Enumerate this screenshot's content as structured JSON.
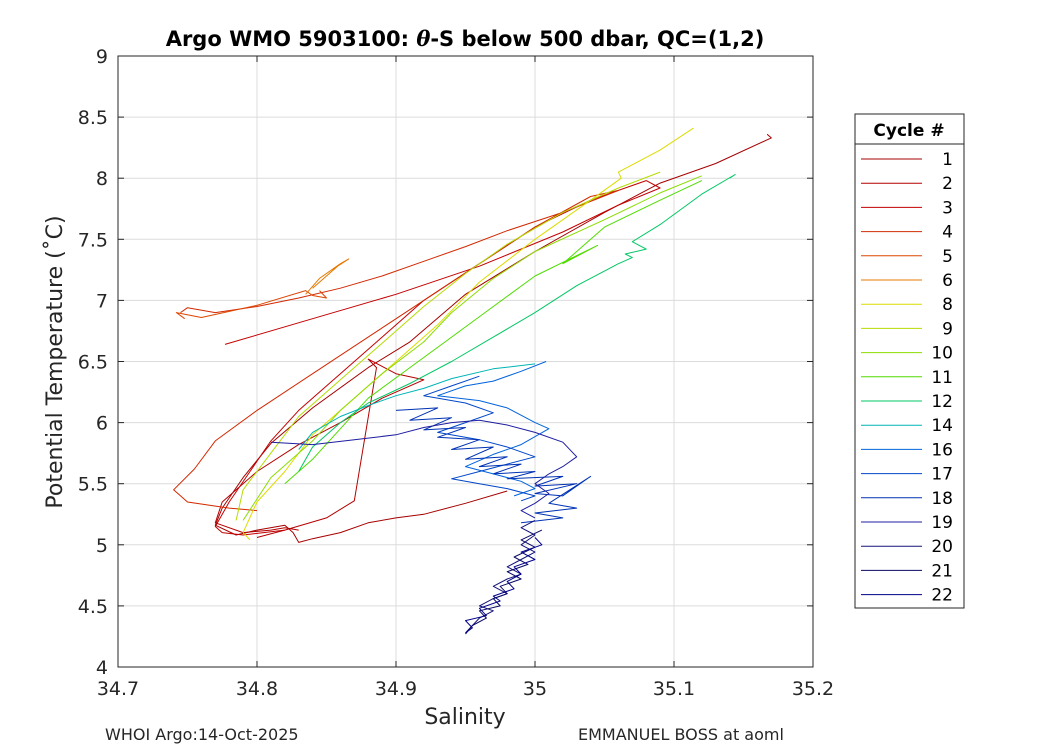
{
  "chart_data": {
    "type": "line",
    "title": "Argo WMO 5903100: θ-S below 500 dbar,  QC=(1,2)",
    "title_parts": [
      "Argo WMO 5903100: ",
      "θ",
      "-S below 500 dbar,  QC=(1,2)"
    ],
    "xlabel": "Salinity",
    "ylabel": "Potential Temperature (˚C)",
    "xlim": [
      34.7,
      35.2
    ],
    "ylim": [
      4,
      9
    ],
    "xticks": [
      "34.7",
      "34.8",
      "34.9",
      "35",
      "35.1",
      "35.2"
    ],
    "yticks": [
      "4",
      "4.5",
      "5",
      "5.5",
      "6",
      "6.5",
      "7",
      "7.5",
      "8",
      "8.5",
      "9"
    ],
    "grid": true,
    "legend": {
      "title": "Cycle #",
      "placement": "right"
    },
    "series": [
      {
        "name": "1",
        "color": "#a50000",
        "x": [
          35.167,
          35.17,
          35.13,
          35.09,
          35.05,
          35.0,
          34.95,
          34.91,
          34.88,
          34.84,
          34.81,
          34.79,
          34.775,
          34.77,
          34.785,
          34.8,
          34.82,
          34.826,
          34.83,
          34.84,
          34.86,
          34.88,
          34.9,
          34.92,
          34.95,
          34.98
        ],
        "y": [
          8.36,
          8.33,
          8.12,
          7.96,
          7.72,
          7.4,
          7.05,
          6.66,
          6.45,
          6.12,
          5.83,
          5.55,
          5.3,
          5.16,
          5.08,
          5.12,
          5.16,
          5.1,
          5.02,
          5.05,
          5.1,
          5.18,
          5.22,
          5.25,
          5.34,
          5.44
        ]
      },
      {
        "name": "2",
        "color": "#b40000",
        "x": [
          34.8,
          34.82,
          34.85,
          34.87,
          34.886,
          34.88,
          34.9,
          34.92,
          34.89,
          34.86,
          34.83,
          34.8,
          34.775,
          34.77,
          34.79,
          34.81,
          34.82,
          34.83
        ],
        "y": [
          5.06,
          5.12,
          5.22,
          5.36,
          6.45,
          6.52,
          6.4,
          6.35,
          6.2,
          6.0,
          5.82,
          5.6,
          5.35,
          5.18,
          5.1,
          5.12,
          5.14,
          5.12
        ]
      },
      {
        "name": "3",
        "color": "#c30000",
        "x": [
          34.777,
          34.84,
          34.9,
          34.96,
          35.02,
          35.06,
          35.09,
          35.08,
          35.04,
          35.0,
          34.96,
          34.92,
          34.89,
          34.86,
          34.83,
          34.81,
          34.795,
          34.78,
          34.77,
          34.775,
          34.79,
          34.82
        ],
        "y": [
          6.64,
          6.85,
          7.05,
          7.28,
          7.56,
          7.78,
          7.92,
          7.98,
          7.82,
          7.6,
          7.3,
          7.0,
          6.7,
          6.4,
          6.1,
          5.85,
          5.6,
          5.35,
          5.15,
          5.1,
          5.08,
          5.12
        ]
      },
      {
        "name": "4",
        "color": "#d22800",
        "x": [
          34.745,
          34.75,
          34.77,
          34.8,
          34.83,
          34.86,
          34.89,
          34.92,
          34.95,
          34.98,
          35.02,
          35.06,
          35.04,
          35.0,
          34.96,
          34.92,
          34.88,
          34.84,
          34.8,
          34.77,
          34.755,
          34.74,
          34.75,
          34.78,
          34.8
        ],
        "y": [
          6.9,
          6.94,
          6.9,
          6.95,
          7.02,
          7.1,
          7.2,
          7.32,
          7.44,
          7.57,
          7.72,
          7.9,
          7.85,
          7.6,
          7.3,
          7.0,
          6.7,
          6.4,
          6.1,
          5.85,
          5.62,
          5.45,
          5.35,
          5.3,
          5.28
        ]
      },
      {
        "name": "5",
        "color": "#dc4600",
        "x": [
          34.748,
          34.742,
          34.76,
          34.8,
          34.835,
          34.84,
          34.85,
          34.845
        ],
        "y": [
          6.85,
          6.9,
          6.86,
          6.96,
          7.08,
          7.04,
          7.02,
          7.08
        ]
      },
      {
        "name": "6",
        "color": "#e67800",
        "x": [
          34.835,
          34.845,
          34.86,
          34.866,
          34.858,
          34.85,
          34.84
        ],
        "y": [
          7.05,
          7.18,
          7.3,
          7.34,
          7.28,
          7.2,
          7.1
        ]
      },
      {
        "name": "8",
        "color": "#dcdc00",
        "x": [
          35.114,
          35.09,
          35.06,
          35.062,
          35.04,
          35.0,
          34.96,
          34.93,
          34.9,
          34.87,
          34.84,
          34.82,
          34.8,
          34.79,
          34.795
        ],
        "y": [
          8.41,
          8.23,
          8.05,
          8.0,
          7.82,
          7.5,
          7.15,
          6.8,
          6.5,
          6.2,
          5.9,
          5.6,
          5.35,
          5.1,
          5.04
        ]
      },
      {
        "name": "9",
        "color": "#b4dc00",
        "x": [
          35.09,
          35.06,
          35.02,
          34.98,
          34.95,
          34.92,
          34.89,
          34.86,
          34.83,
          34.81,
          34.79,
          34.785
        ],
        "y": [
          8.05,
          7.92,
          7.72,
          7.46,
          7.22,
          6.95,
          6.65,
          6.35,
          6.05,
          5.75,
          5.45,
          5.2
        ]
      },
      {
        "name": "10",
        "color": "#8cdc00",
        "x": [
          35.12,
          35.09,
          35.05,
          35.0,
          34.97,
          34.94,
          34.92,
          34.89,
          34.86,
          34.84,
          34.81,
          34.79
        ],
        "y": [
          8.02,
          7.88,
          7.66,
          7.4,
          7.18,
          6.9,
          6.66,
          6.4,
          6.1,
          5.85,
          5.55,
          5.2
        ]
      },
      {
        "name": "11",
        "color": "#50dc00",
        "x": [
          35.12,
          35.09,
          35.05,
          35.02,
          35.045,
          35.0,
          34.97,
          34.94,
          34.91,
          34.88,
          34.86,
          34.84,
          34.82
        ],
        "y": [
          7.98,
          7.82,
          7.6,
          7.3,
          7.45,
          7.2,
          6.95,
          6.7,
          6.45,
          6.2,
          5.95,
          5.7,
          5.5
        ]
      },
      {
        "name": "12",
        "color": "#00c864",
        "x": [
          35.14,
          35.144,
          35.12,
          35.09,
          35.07,
          35.08,
          35.065,
          35.07,
          35.06,
          35.03,
          35.0,
          34.97,
          34.94,
          34.91,
          34.88,
          34.86,
          34.84,
          34.83
        ],
        "y": [
          8.0,
          8.03,
          7.87,
          7.62,
          7.48,
          7.42,
          7.38,
          7.35,
          7.3,
          7.12,
          6.9,
          6.7,
          6.5,
          6.32,
          6.16,
          6.0,
          5.8,
          5.6
        ]
      },
      {
        "name": "14",
        "color": "#00b4b4",
        "x": [
          35.0,
          34.97,
          34.94,
          34.92,
          34.9,
          34.88,
          34.86,
          34.84,
          34.83
        ],
        "y": [
          6.48,
          6.44,
          6.36,
          6.28,
          6.22,
          6.14,
          6.05,
          5.92,
          5.78
        ]
      },
      {
        "name": "16",
        "color": "#0064dc",
        "x": [
          35.008,
          34.99,
          34.97,
          34.95,
          34.93,
          34.96,
          34.98,
          35.0,
          35.01,
          34.99,
          34.97,
          34.95,
          34.97,
          34.99,
          35.0,
          34.985
        ],
        "y": [
          6.5,
          6.42,
          6.34,
          6.3,
          6.22,
          6.18,
          6.12,
          6.0,
          5.95,
          5.82,
          5.74,
          5.64,
          5.58,
          5.52,
          5.46,
          5.4
        ]
      },
      {
        "name": "17",
        "color": "#0046c8",
        "x": [
          34.96,
          34.94,
          34.92,
          34.95,
          34.97,
          34.95,
          34.93,
          34.96,
          34.98,
          35.0,
          34.98,
          34.96,
          34.94,
          34.96,
          34.98,
          35.0,
          34.99
        ],
        "y": [
          6.38,
          6.3,
          6.22,
          6.16,
          6.08,
          6.0,
          5.92,
          5.86,
          5.8,
          5.72,
          5.66,
          5.6,
          5.54,
          5.5,
          5.46,
          5.4,
          5.36
        ]
      },
      {
        "name": "18",
        "color": "#0032b4",
        "x": [
          34.9,
          34.93,
          34.91,
          34.94,
          34.92,
          34.95,
          34.93,
          34.96,
          34.94,
          34.97,
          34.95,
          34.98,
          34.96,
          34.99,
          34.97,
          35.0,
          34.98,
          35.02,
          35.0,
          35.03,
          35.0,
          35.02,
          35.04,
          35.01,
          35.03,
          35.0,
          35.02,
          34.99
        ],
        "y": [
          6.1,
          6.12,
          6.02,
          6.04,
          5.94,
          5.96,
          5.88,
          5.86,
          5.78,
          5.8,
          5.7,
          5.72,
          5.64,
          5.66,
          5.58,
          5.6,
          5.54,
          5.56,
          5.48,
          5.5,
          5.42,
          5.4,
          5.56,
          5.34,
          5.3,
          5.26,
          5.22,
          5.18
        ]
      },
      {
        "name": "19",
        "color": "#1e1ea0",
        "x": [
          34.81,
          34.84,
          34.87,
          34.9,
          34.92,
          34.94,
          34.96,
          34.98,
          35.0,
          35.02,
          35.03,
          35.02,
          35.01,
          35.0,
          35.01,
          35.0,
          34.99,
          35.0
        ],
        "y": [
          5.84,
          5.82,
          5.86,
          5.9,
          5.96,
          6.0,
          6.02,
          5.98,
          5.92,
          5.84,
          5.72,
          5.64,
          5.58,
          5.5,
          5.42,
          5.34,
          5.28,
          5.22
        ]
      },
      {
        "name": "20",
        "color": "#141478",
        "x": [
          35.0,
          34.99,
          35.0,
          34.99,
          35.0,
          34.99,
          34.98,
          34.99,
          34.98,
          34.97,
          34.98,
          34.97,
          34.96,
          34.97,
          34.96,
          34.955,
          34.95
        ],
        "y": [
          5.2,
          5.14,
          5.08,
          5.0,
          4.94,
          4.88,
          4.82,
          4.76,
          4.72,
          4.66,
          4.6,
          4.56,
          4.5,
          4.46,
          4.4,
          4.34,
          4.28
        ]
      },
      {
        "name": "21",
        "color": "#0a0a64",
        "x": [
          35.005,
          34.99,
          35.0,
          34.985,
          34.995,
          34.98,
          34.99,
          34.975,
          34.98,
          34.97,
          34.975,
          34.96,
          34.965,
          34.955,
          34.95
        ],
        "y": [
          5.12,
          5.04,
          4.98,
          4.9,
          4.84,
          4.78,
          4.72,
          4.66,
          4.6,
          4.56,
          4.5,
          4.46,
          4.4,
          4.34,
          4.27
        ]
      },
      {
        "name": "22",
        "color": "#00008c",
        "x": [
          35.0,
          35.005,
          34.99,
          35.0,
          34.985,
          34.99,
          34.98,
          34.985,
          34.97,
          34.975,
          34.96,
          34.965,
          34.95,
          34.955,
          34.95
        ],
        "y": [
          5.06,
          5.0,
          4.94,
          4.88,
          4.82,
          4.76,
          4.7,
          4.64,
          4.58,
          4.54,
          4.48,
          4.42,
          4.38,
          4.32,
          4.28
        ]
      }
    ]
  },
  "footer": {
    "left": "WHOI Argo:14-Oct-2025",
    "right": "EMMANUEL BOSS at aoml"
  }
}
